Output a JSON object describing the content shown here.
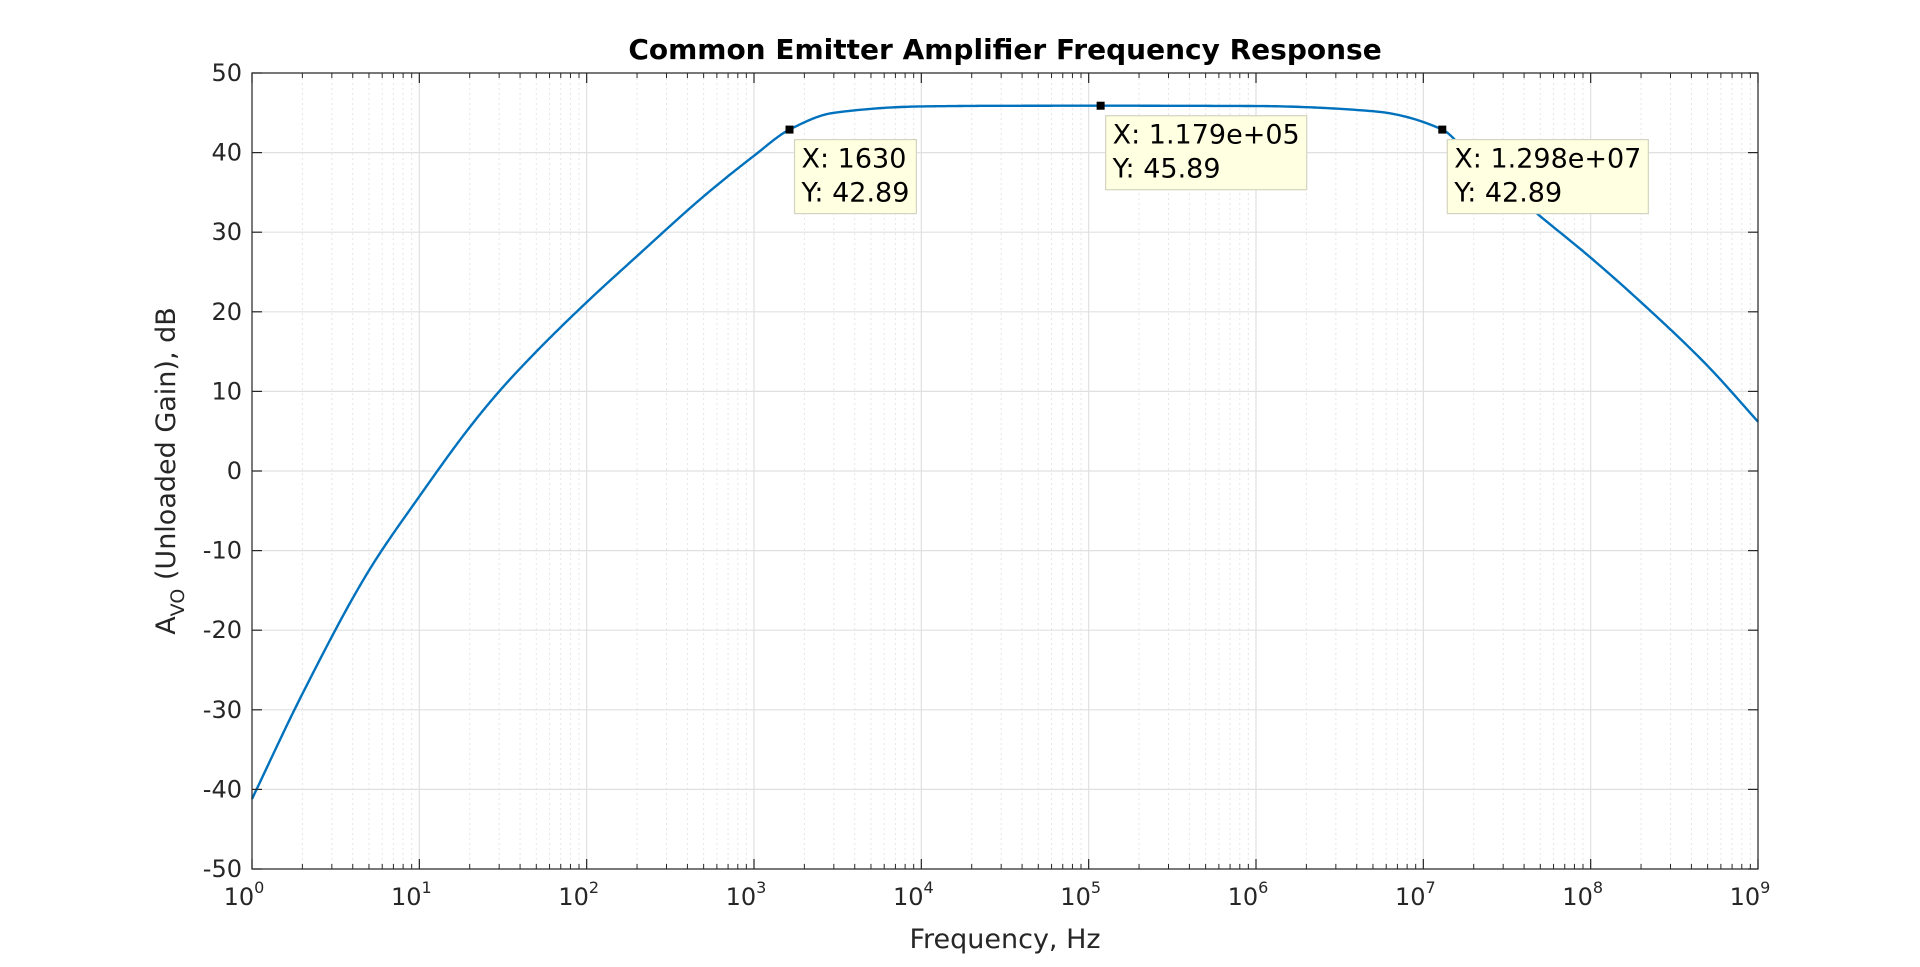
{
  "chart_data": {
    "type": "line",
    "title": "Common Emitter Amplifier Frequency Response",
    "xlabel": "Frequency, Hz",
    "ylabel": {
      "main": "A",
      "sub": "VO",
      "rest": " (Unloaded Gain), dB"
    },
    "xscale": "log",
    "xlim": [
      1,
      1000000000
    ],
    "ylim": [
      -50,
      50
    ],
    "grid": true,
    "minor_grid": true,
    "x_ticks": [
      {
        "base": "10",
        "exp": "0",
        "value": 1
      },
      {
        "base": "10",
        "exp": "1",
        "value": 10
      },
      {
        "base": "10",
        "exp": "2",
        "value": 100
      },
      {
        "base": "10",
        "exp": "3",
        "value": 1000
      },
      {
        "base": "10",
        "exp": "4",
        "value": 10000
      },
      {
        "base": "10",
        "exp": "5",
        "value": 100000
      },
      {
        "base": "10",
        "exp": "6",
        "value": 1000000
      },
      {
        "base": "10",
        "exp": "7",
        "value": 10000000
      },
      {
        "base": "10",
        "exp": "8",
        "value": 100000000
      },
      {
        "base": "10",
        "exp": "9",
        "value": 1000000000
      }
    ],
    "y_ticks": [
      {
        "label": "50",
        "value": 50
      },
      {
        "label": "40",
        "value": 40
      },
      {
        "label": "30",
        "value": 30
      },
      {
        "label": "20",
        "value": 20
      },
      {
        "label": "10",
        "value": 10
      },
      {
        "label": "0",
        "value": 0
      },
      {
        "label": "-10",
        "value": -10
      },
      {
        "label": "-20",
        "value": -20
      },
      {
        "label": "-30",
        "value": -30
      },
      {
        "label": "-40",
        "value": -40
      },
      {
        "label": "-50",
        "value": -50
      }
    ],
    "series": [
      {
        "color": "#0072BD",
        "x": [
          1,
          2,
          5,
          10,
          20,
          30,
          50,
          100,
          200,
          500,
          1000,
          1630,
          3000,
          10000,
          30000,
          117900,
          1000000,
          5000000,
          12980000,
          20000000,
          50000000,
          100000000,
          200000000,
          500000000,
          1000000000
        ],
        "y": [
          -41.2,
          -28.0,
          -12.5,
          -3.2,
          5.5,
          10.0,
          15.0,
          21.2,
          27.0,
          34.5,
          39.6,
          42.89,
          45.0,
          45.8,
          45.88,
          45.89,
          45.85,
          45.2,
          42.89,
          39.0,
          32.0,
          26.8,
          21.2,
          13.2,
          6.2
        ]
      }
    ],
    "datatips": [
      {
        "x": 1630,
        "y": 42.89,
        "x_text": "X: 1630",
        "y_text": "Y: 42.89"
      },
      {
        "x": 117900,
        "y": 45.89,
        "x_text": "X: 1.179e+05",
        "y_text": "Y: 45.89"
      },
      {
        "x": 12980000,
        "y": 42.89,
        "x_text": "X: 1.298e+07",
        "y_text": "Y: 42.89"
      }
    ],
    "datatip_colors": {
      "fill": "#FFFFE1",
      "border": "#D4D4C0",
      "marker": "#000000"
    },
    "axis_color": "#262626",
    "grid_color": "#E0E0E0"
  }
}
